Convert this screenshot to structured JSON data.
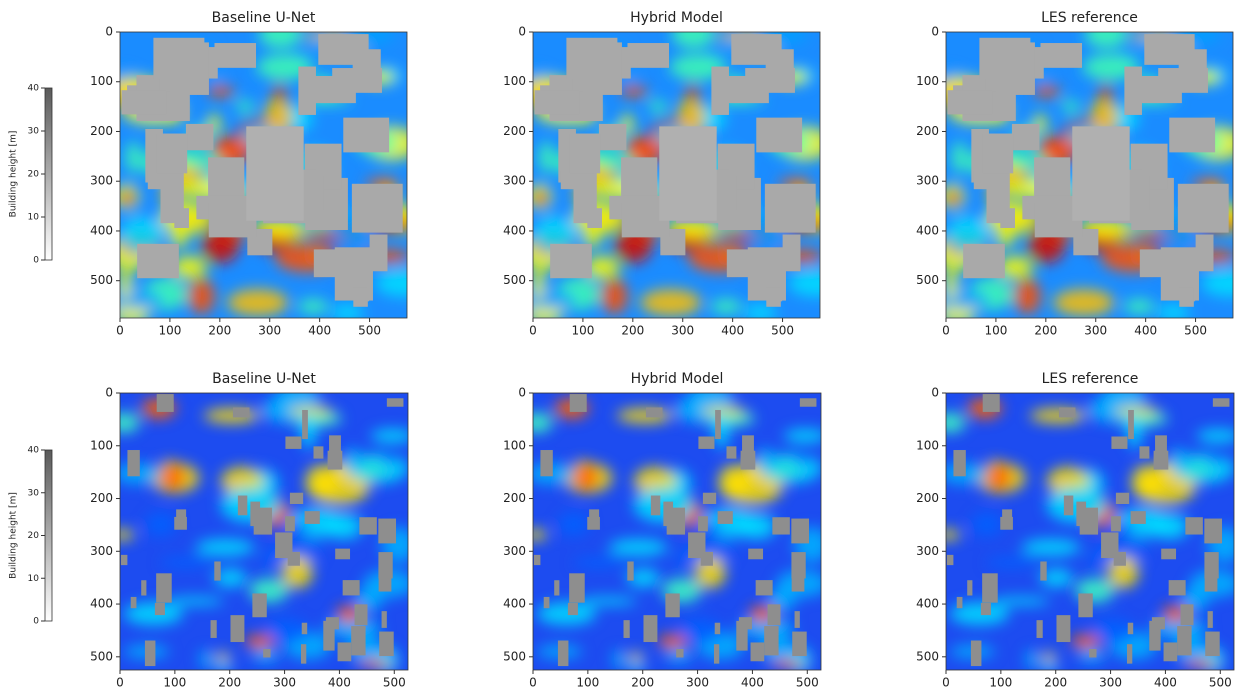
{
  "chart_data": [
    {
      "type": "colorbar",
      "label": "Building height [m]",
      "ylim": [
        0,
        40
      ],
      "yticks": [
        0,
        10,
        20,
        30,
        40
      ]
    },
    {
      "type": "heatmap",
      "title": "Baseline U-Net",
      "xlim": [
        0,
        575
      ],
      "ylim": [
        575,
        0
      ],
      "xticks": [
        0,
        100,
        200,
        300,
        400,
        500
      ],
      "yticks": [
        0,
        100,
        200,
        300,
        400,
        500
      ]
    },
    {
      "type": "heatmap",
      "title": "Hybrid Model",
      "xlim": [
        0,
        575
      ],
      "ylim": [
        575,
        0
      ],
      "xticks": [
        0,
        100,
        200,
        300,
        400,
        500
      ],
      "yticks": [
        0,
        100,
        200,
        300,
        400,
        500
      ]
    },
    {
      "type": "heatmap",
      "title": "LES reference",
      "xlim": [
        0,
        575
      ],
      "ylim": [
        575,
        0
      ],
      "xticks": [
        0,
        100,
        200,
        300,
        400,
        500
      ],
      "yticks": [
        0,
        100,
        200,
        300,
        400,
        500
      ]
    },
    {
      "type": "colorbar",
      "label": "Building height [m]",
      "ylim": [
        0,
        40
      ],
      "yticks": [
        0,
        10,
        20,
        30,
        40
      ]
    },
    {
      "type": "heatmap",
      "title": "Baseline U-Net",
      "xlim": [
        0,
        525
      ],
      "ylim": [
        525,
        0
      ],
      "xticks": [
        0,
        100,
        200,
        300,
        400,
        500
      ],
      "yticks": [
        0,
        100,
        200,
        300,
        400,
        500
      ]
    },
    {
      "type": "heatmap",
      "title": "Hybrid Model",
      "xlim": [
        0,
        525
      ],
      "ylim": [
        525,
        0
      ],
      "xticks": [
        0,
        100,
        200,
        300,
        400,
        500
      ],
      "yticks": [
        0,
        100,
        200,
        300,
        400,
        500
      ]
    },
    {
      "type": "heatmap",
      "title": "LES reference",
      "xlim": [
        0,
        525
      ],
      "ylim": [
        525,
        0
      ],
      "xticks": [
        0,
        100,
        200,
        300,
        400,
        500
      ],
      "yticks": [
        0,
        100,
        200,
        300,
        400,
        500
      ]
    }
  ]
}
